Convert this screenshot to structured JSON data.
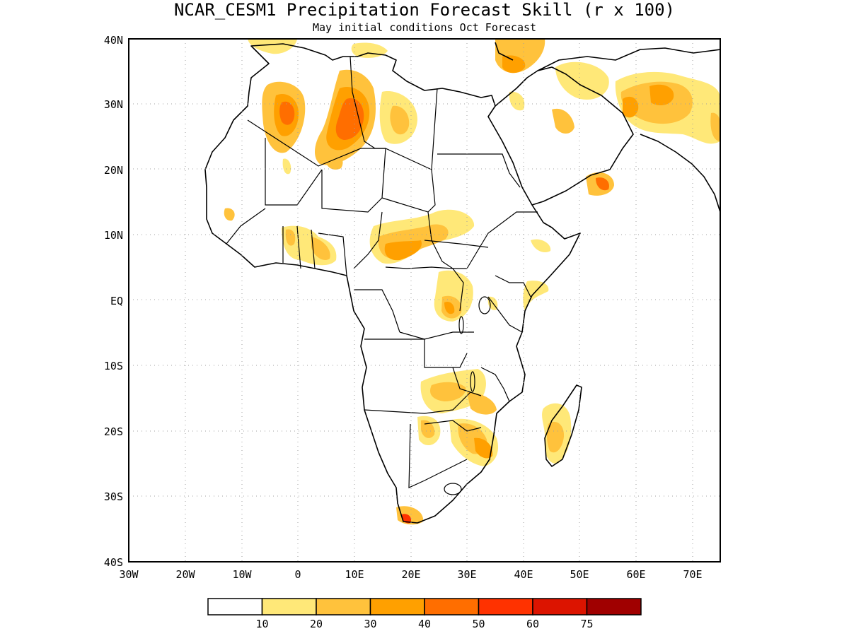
{
  "title": "NCAR_CESM1 Precipitation Forecast Skill (r x 100)",
  "subtitle": "May initial conditions  Oct Forecast",
  "lat_labels": [
    "40N",
    "30N",
    "20N",
    "10N",
    "EQ",
    "10S",
    "20S",
    "30S",
    "40S"
  ],
  "lon_labels": [
    "30W",
    "20W",
    "10W",
    "0",
    "10E",
    "20E",
    "30E",
    "40E",
    "50E",
    "60E",
    "70E"
  ],
  "legend": {
    "labels": [
      "10",
      "20",
      "30",
      "40",
      "50",
      "60",
      "75"
    ],
    "colors": [
      "#ffffff",
      "#ffe878",
      "#ffc23c",
      "#ffa000",
      "#ff6e00",
      "#ff3200",
      "#dc1400",
      "#a00000"
    ]
  },
  "grid": "dotted"
}
